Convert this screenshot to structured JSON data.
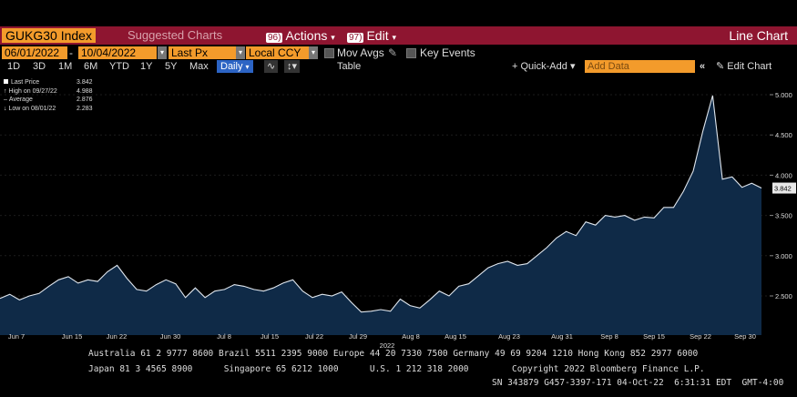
{
  "toolbar": {
    "ticker": "GUKG30 Index",
    "suggested": "Suggested Charts",
    "actions_num": "96)",
    "actions_label": "Actions",
    "edit_num": "97)",
    "edit_label": "Edit",
    "chart_type_label": "Line Chart"
  },
  "settings": {
    "start_date": "06/01/2022",
    "separator": "-",
    "end_date": "10/04/2022",
    "field": "Last Px",
    "currency": "Local CCY",
    "mov_avgs": "Mov Avgs",
    "key_events": "Key Events"
  },
  "range_bar": {
    "ranges": [
      "1D",
      "3D",
      "1M",
      "6M",
      "YTD",
      "1Y",
      "5Y",
      "Max"
    ],
    "frequency": "Daily",
    "table": "Table",
    "quick_add": "+ Quick-Add",
    "add_data_placeholder": "Add Data",
    "edit_chart": "Edit Chart"
  },
  "legend": {
    "last_label": "Last Price",
    "last_value": "3.842",
    "high_label": "High on 09/27/22",
    "high_value": "4.988",
    "avg_label": "Average",
    "avg_value": "2.876",
    "low_label": "Low on 08/01/22",
    "low_value": "2.283"
  },
  "colors": {
    "area_fill": "#0f2a47",
    "line": "#dfe6ee",
    "accent": "#f39b2b",
    "bar": "#8e1530"
  },
  "chart_data": {
    "type": "area",
    "title": "",
    "xlabel": "2022",
    "ylabel": "",
    "ylim": [
      2.0,
      5.2
    ],
    "y_ticks": [
      "2.500",
      "3.000",
      "3.500",
      "4.000",
      "4.500",
      "5.000"
    ],
    "x_tick_labels": [
      "Jun 7",
      "Jun 15",
      "Jun 22",
      "Jun 30",
      "Jul 8",
      "Jul 15",
      "Jul 22",
      "Jul 29",
      "Aug 8",
      "Aug 15",
      "Aug 23",
      "Aug 31",
      "Sep 8",
      "Sep 15",
      "Sep 22",
      "Sep 30"
    ],
    "last_value_label": "3.842",
    "series": [
      {
        "values": [
          2.47,
          2.52,
          2.45,
          2.5,
          2.53,
          2.62,
          2.7,
          2.74,
          2.66,
          2.7,
          2.68,
          2.8,
          2.88,
          2.72,
          2.58,
          2.56,
          2.64,
          2.7,
          2.65,
          2.48,
          2.6,
          2.48,
          2.56,
          2.58,
          2.64,
          2.62,
          2.58,
          2.56,
          2.6,
          2.66,
          2.7,
          2.56,
          2.48,
          2.52,
          2.5,
          2.55,
          2.42,
          2.3,
          2.31,
          2.33,
          2.31,
          2.46,
          2.38,
          2.35,
          2.45,
          2.56,
          2.5,
          2.62,
          2.65,
          2.75,
          2.85,
          2.9,
          2.93,
          2.88,
          2.9,
          3.0,
          3.1,
          3.22,
          3.3,
          3.25,
          3.42,
          3.38,
          3.5,
          3.48,
          3.5,
          3.44,
          3.48,
          3.47,
          3.6,
          3.6,
          3.8,
          4.05,
          4.55,
          4.99,
          3.95,
          3.98,
          3.85,
          3.9,
          3.84
        ]
      }
    ]
  },
  "footer": {
    "line1": "Australia 61 2 9777 8600 Brazil 5511 2395 9000 Europe 44 20 7330 7500 Germany 49 69 9204 1210 Hong Kong 852 2977 6000",
    "line2_left": "Japan 81 3 4565 8900      Singapore 65 6212 1000      U.S. 1 212 318 2000",
    "line2_right": "Copyright 2022 Bloomberg Finance L.P.",
    "line3": "SN 343879 G457-3397-171 04-Oct-22  6:31:31 EDT  GMT-4:00"
  }
}
